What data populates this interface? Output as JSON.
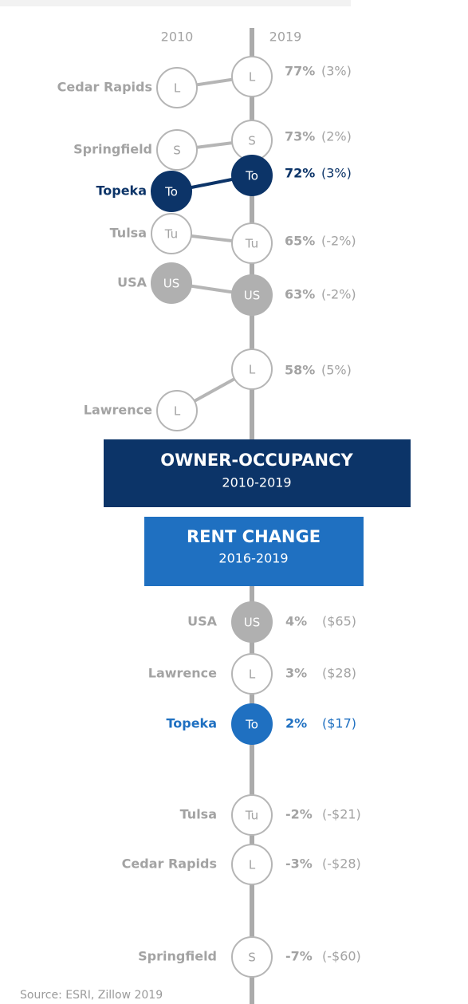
{
  "columns": [
    "2010",
    "2019"
  ],
  "owner_occupancy": {
    "title": "OWNER-OCCUPANCY",
    "period": "2010-2019",
    "rows": [
      {
        "name": "Cedar Rapids",
        "abbr": "L",
        "share": "77%",
        "change": "(3%)"
      },
      {
        "name": "Springfield",
        "abbr": "S",
        "share": "73%",
        "change": "(2%)"
      },
      {
        "name": "Topeka",
        "abbr": "To",
        "share": "72%",
        "change": "(3%)"
      },
      {
        "name": "Tulsa",
        "abbr": "Tu",
        "share": "65%",
        "change": "(-2%)"
      },
      {
        "name": "USA",
        "abbr": "US",
        "share": "63%",
        "change": "(-2%)"
      },
      {
        "name": "Lawrence",
        "abbr": "L",
        "share": "58%",
        "change": "(5%)"
      }
    ]
  },
  "rent_change": {
    "title": "RENT CHANGE",
    "period": "2016-2019",
    "rows": [
      {
        "name": "USA",
        "abbr": "US",
        "change": "4%",
        "amount": "($65)"
      },
      {
        "name": "Lawrence",
        "abbr": "L",
        "change": "3%",
        "amount": "($28)"
      },
      {
        "name": "Topeka",
        "abbr": "To",
        "change": "2%",
        "amount": "($17)"
      },
      {
        "name": "Tulsa",
        "abbr": "Tu",
        "change": "-2%",
        "amount": "(-$21)"
      },
      {
        "name": "Cedar Rapids",
        "abbr": "L",
        "change": "-3%",
        "amount": "(-$28)"
      },
      {
        "name": "Springfield",
        "abbr": "S",
        "change": "-7%",
        "amount": "(-$60)"
      }
    ]
  },
  "source": "Source: ESRI, Zillow 2019"
}
